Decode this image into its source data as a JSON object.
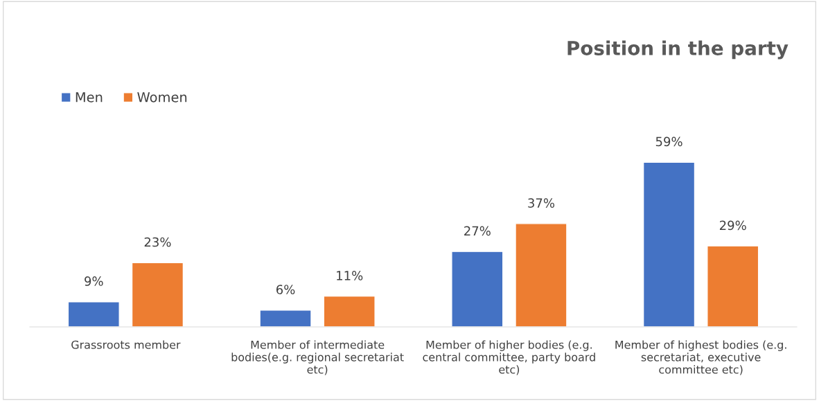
{
  "chart_data": {
    "type": "bar",
    "title": "Position in the party",
    "categories": [
      "Grassroots member",
      "Member of intermediate\nbodies(e.g. regional secretariat\netc)",
      "Member of higher bodies (e.g.\ncentral committee, party board\netc)",
      "Member of highest bodies (e.g.\nsecretariat, executive\ncommittee etc)"
    ],
    "series": [
      {
        "name": "Men",
        "color": "#4472c4",
        "values": [
          9,
          6,
          27,
          59
        ],
        "value_labels": [
          "9%",
          "6%",
          "27%",
          "59%"
        ]
      },
      {
        "name": "Women",
        "color": "#ed7d31",
        "values": [
          23,
          11,
          37,
          29
        ],
        "value_labels": [
          "23%",
          "11%",
          "37%",
          "29%"
        ]
      }
    ],
    "legend": "top left",
    "grid": false
  }
}
